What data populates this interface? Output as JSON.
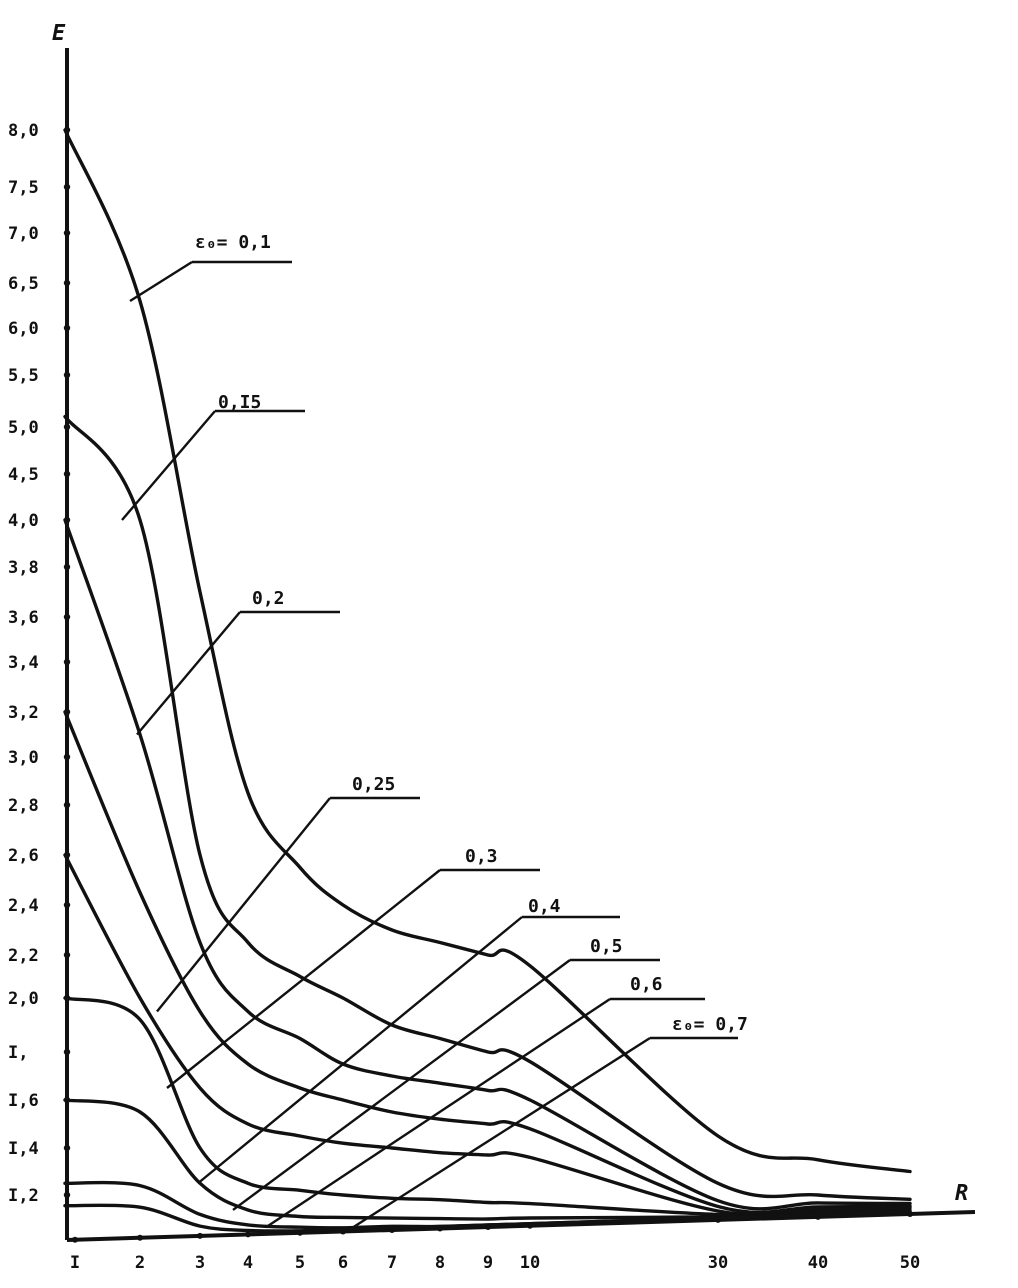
{
  "chart_data": {
    "type": "line",
    "xlabel": "R",
    "ylabel": "E",
    "x_ticks": [
      "I",
      "2",
      "3",
      "4",
      "5",
      "6",
      "7",
      "8",
      "9",
      "10",
      "30",
      "40",
      "50"
    ],
    "y_ticks": [
      "I,2",
      "I,4",
      "I,6",
      "I,",
      "2,0",
      "2,2",
      "2,4",
      "2,6",
      "2,8",
      "3,0",
      "3,2",
      "3,4",
      "3,6",
      "3,8",
      "4,0",
      "4,5",
      "5,0",
      "5,5",
      "6,0",
      "6,5",
      "7,0",
      "7,5",
      "8,0"
    ],
    "x": [
      1,
      2,
      3,
      4,
      5,
      6,
      7,
      8,
      9,
      10,
      30,
      40,
      50
    ],
    "series": [
      {
        "name": "0,1",
        "label": "ε₀= 0,1",
        "values": [
          8.0,
          6.3,
          3.7,
          2.85,
          2.55,
          2.4,
          2.3,
          2.25,
          2.2,
          2.15,
          1.45,
          1.35,
          1.3
        ]
      },
      {
        "name": "0,15",
        "label": "0,I5",
        "values": [
          5.1,
          4.0,
          2.6,
          2.25,
          2.1,
          2.0,
          1.9,
          1.85,
          1.8,
          1.76,
          1.25,
          1.2,
          1.15
        ]
      },
      {
        "name": "0,2",
        "label": "0,2",
        "values": [
          4.0,
          3.1,
          2.25,
          1.95,
          1.85,
          1.75,
          1.7,
          1.67,
          1.64,
          1.6,
          1.15,
          1.12,
          1.1
        ]
      },
      {
        "name": "0,25",
        "label": "0,25",
        "values": [
          3.2,
          2.45,
          1.95,
          1.75,
          1.65,
          1.6,
          1.55,
          1.52,
          1.5,
          1.48,
          1.1,
          1.08,
          1.07
        ]
      },
      {
        "name": "0,3",
        "label": "0,3",
        "values": [
          2.6,
          2.0,
          1.65,
          1.5,
          1.45,
          1.42,
          1.4,
          1.38,
          1.37,
          1.36,
          1.06,
          1.05,
          1.05
        ]
      },
      {
        "name": "0,4",
        "label": "0,4",
        "values": [
          2.0,
          1.92,
          1.4,
          1.25,
          1.22,
          1.2,
          1.18,
          1.17,
          1.15,
          1.14,
          1.03,
          1.02,
          1.02
        ]
      },
      {
        "name": "0,5",
        "label": "0,5",
        "values": [
          1.6,
          1.55,
          1.25,
          1.12,
          1.08,
          1.07,
          1.06,
          1.05,
          1.04,
          1.04,
          1.01,
          1.01,
          1.0
        ]
      },
      {
        "name": "0,6",
        "label": "0,6",
        "values": [
          1.25,
          1.24,
          1.1,
          1.04,
          1.02,
          1.01,
          1.01,
          1.0,
          1.0,
          1.0,
          1.0,
          1.0,
          1.0
        ]
      },
      {
        "name": "0,7",
        "label": "ε₀= 0,7",
        "values": [
          1.15,
          1.14,
          1.04,
          1.01,
          1.0,
          1.0,
          1.0,
          1.0,
          1.0,
          1.0,
          1.0,
          1.0,
          1.0
        ]
      }
    ],
    "grid": false,
    "legend": "inline labels with leader lines"
  }
}
